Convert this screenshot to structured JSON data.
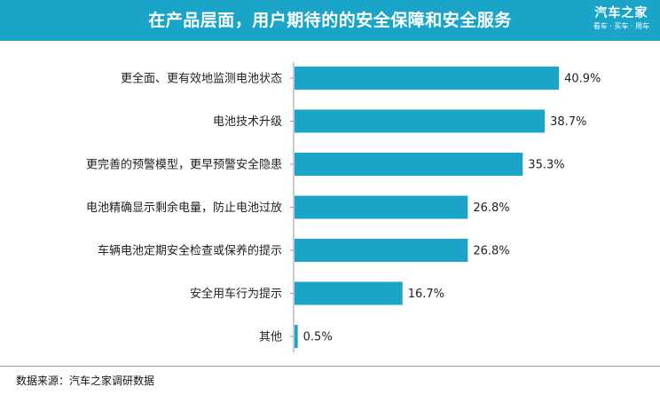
{
  "header": {
    "title": "在产品层面，用户期待的的安全保障和安全服务",
    "logo_name": "汽车之家",
    "logo_tagline": "看车 · 买车 · 用车"
  },
  "colors": {
    "header_bg": "#1aa5c8",
    "bar": "#1aa5c8",
    "axis": "#999999",
    "text": "#222222"
  },
  "chart_data": {
    "type": "bar",
    "orientation": "horizontal",
    "title": "在产品层面，用户期待的的安全保障和安全服务",
    "xlabel": "",
    "ylabel": "",
    "xlim": [
      0,
      45
    ],
    "grid": false,
    "categories": [
      "更全面、更有效地监测电池状态",
      "电池技术升级",
      "更完善的预警模型，更早预警安全隐患",
      "电池精确显示剩余电量，防止电池过放",
      "车辆电池定期安全检查或保养的提示",
      "安全用车行为提示",
      "其他"
    ],
    "values": [
      40.9,
      38.7,
      35.3,
      26.8,
      26.8,
      16.7,
      0.5
    ],
    "data_labels": [
      "40.9%",
      "38.7%",
      "35.3%",
      "26.8%",
      "26.8%",
      "16.7%",
      "0.5%"
    ]
  },
  "footer": {
    "source": "数据来源：汽车之家调研数据"
  }
}
